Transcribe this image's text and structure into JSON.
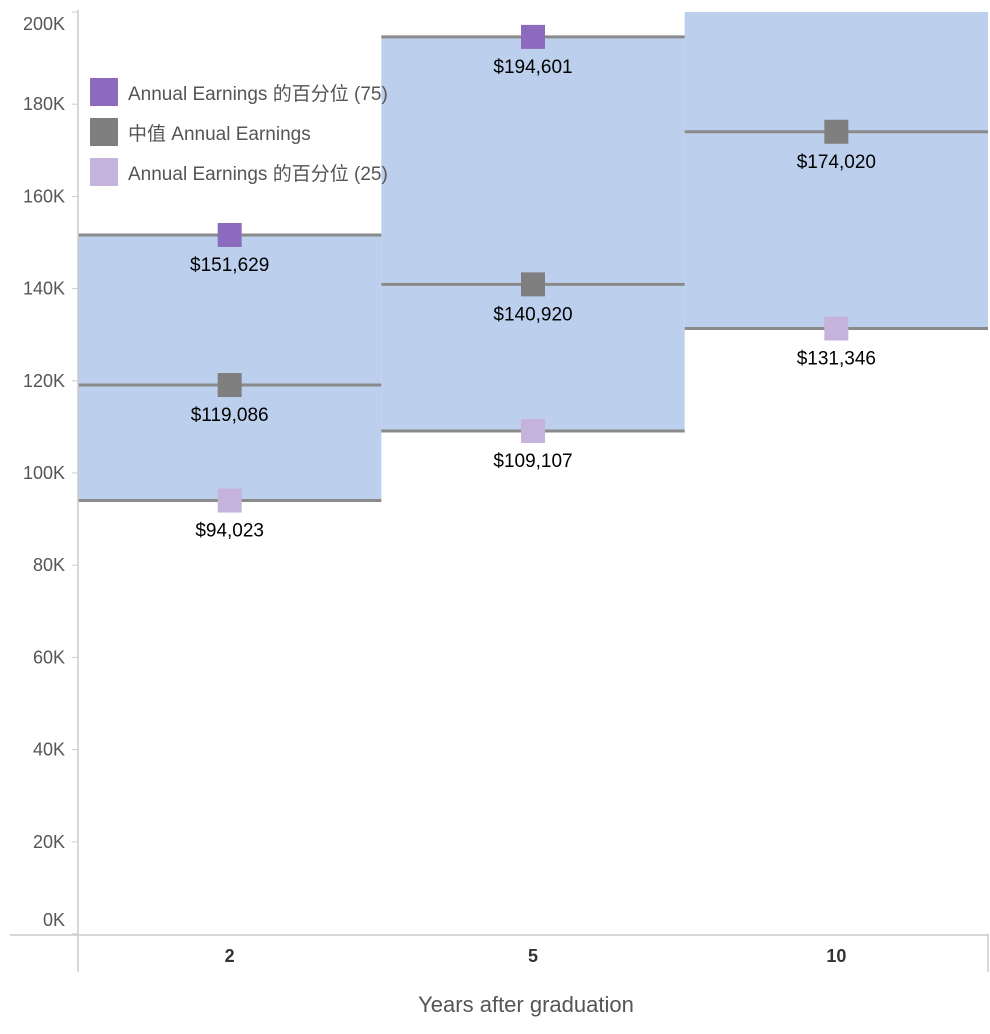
{
  "chart_data": {
    "type": "box",
    "xlabel": "Years after graduation",
    "ylabel": "",
    "ylim": [
      0,
      200000
    ],
    "y_ticks": [
      0,
      20000,
      40000,
      60000,
      80000,
      100000,
      120000,
      140000,
      160000,
      180000,
      200000
    ],
    "y_tick_labels": [
      "0K",
      "20K",
      "40K",
      "60K",
      "80K",
      "100K",
      "120K",
      "140K",
      "160K",
      "180K",
      "200K"
    ],
    "categories": [
      "2",
      "5",
      "10"
    ],
    "series": [
      {
        "name": "Annual Earnings 的百分位 (75)",
        "color": "#8c6bbf",
        "values": [
          151629,
          194601,
          200000
        ],
        "labels": [
          "$151,629",
          "$194,601",
          ""
        ]
      },
      {
        "name": "中值 Annual Earnings",
        "color": "#7f7f7f",
        "values": [
          119086,
          140920,
          174020
        ],
        "labels": [
          "$119,086",
          "$140,920",
          "$174,020"
        ]
      },
      {
        "name": "Annual Earnings 的百分位 (25)",
        "color": "#c6b3dc",
        "values": [
          94023,
          109107,
          131346
        ],
        "labels": [
          "$94,023",
          "$109,107",
          "$131,346"
        ]
      }
    ],
    "band_color": "#bcd0ee",
    "line_color": "#8a8a8a",
    "legend_position": "top-left",
    "grid": false
  }
}
